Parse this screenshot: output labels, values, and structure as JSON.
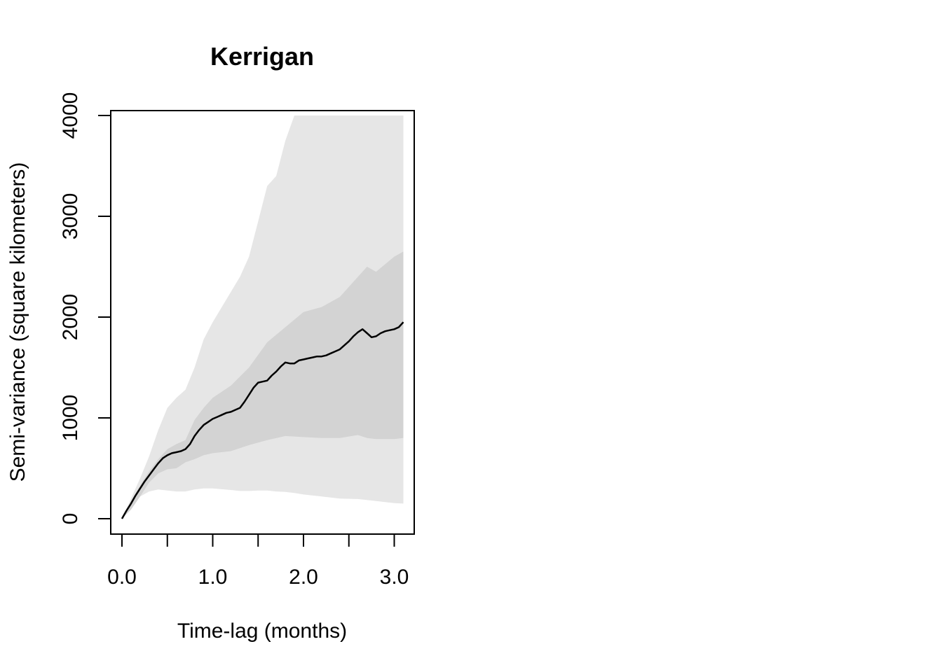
{
  "chart_data": {
    "type": "area",
    "title": "Kerrigan",
    "xlabel": "Time-lag (months)",
    "ylabel": "Semi-variance (square kilometers)",
    "xlim": [
      0.0,
      3.1
    ],
    "ylim": [
      0,
      4000
    ],
    "x_ticks": [
      0.0,
      0.5,
      1.0,
      1.5,
      2.0,
      2.5,
      3.0
    ],
    "x_tick_labels": [
      "0.0",
      "1.0",
      "2.0",
      "3.0"
    ],
    "x_tick_label_values": [
      0.0,
      1.0,
      2.0,
      3.0
    ],
    "y_ticks": [
      0,
      1000,
      2000,
      3000,
      4000
    ],
    "y_tick_labels": [
      "0",
      "1000",
      "2000",
      "3000",
      "4000"
    ],
    "grid": false,
    "legend": "none",
    "colors": {
      "outer_band": "#e6e6e6",
      "inner_band": "#d3d3d3",
      "line": "#000000"
    },
    "series": [
      {
        "role": "outer-confidence-band",
        "x": [
          0.0,
          0.1,
          0.2,
          0.3,
          0.4,
          0.5,
          0.6,
          0.7,
          0.8,
          0.9,
          1.0,
          1.2,
          1.3,
          1.4,
          1.5,
          1.6,
          1.7,
          1.8,
          1.9,
          2.0,
          2.2,
          2.4,
          2.6,
          2.8,
          3.0,
          3.1
        ],
        "upper": [
          0,
          200,
          400,
          620,
          880,
          1100,
          1200,
          1280,
          1500,
          1780,
          1950,
          2250,
          2400,
          2600,
          2950,
          3300,
          3400,
          3750,
          4000,
          4000,
          4000,
          4000,
          4000,
          4000,
          4000,
          4000
        ],
        "lower": [
          0,
          120,
          220,
          270,
          290,
          280,
          270,
          270,
          290,
          300,
          300,
          285,
          275,
          275,
          280,
          280,
          270,
          265,
          255,
          240,
          220,
          200,
          195,
          175,
          155,
          150
        ]
      },
      {
        "role": "inner-confidence-band",
        "x": [
          0.0,
          0.1,
          0.2,
          0.3,
          0.4,
          0.5,
          0.6,
          0.7,
          0.8,
          0.9,
          1.0,
          1.2,
          1.4,
          1.6,
          1.8,
          2.0,
          2.2,
          2.4,
          2.6,
          2.7,
          2.8,
          3.0,
          3.1
        ],
        "upper": [
          0,
          170,
          330,
          470,
          590,
          690,
          740,
          780,
          980,
          1100,
          1200,
          1320,
          1500,
          1750,
          1900,
          2050,
          2100,
          2200,
          2400,
          2500,
          2450,
          2600,
          2650
        ],
        "lower": [
          0,
          90,
          220,
          360,
          450,
          490,
          500,
          560,
          590,
          630,
          650,
          670,
          730,
          780,
          820,
          810,
          800,
          800,
          830,
          800,
          790,
          790,
          800
        ]
      },
      {
        "role": "semi-variance",
        "x": [
          0.0,
          0.05,
          0.1,
          0.15,
          0.2,
          0.25,
          0.3,
          0.35,
          0.4,
          0.45,
          0.5,
          0.55,
          0.6,
          0.65,
          0.7,
          0.75,
          0.8,
          0.85,
          0.9,
          0.95,
          1.0,
          1.05,
          1.1,
          1.15,
          1.2,
          1.25,
          1.3,
          1.35,
          1.4,
          1.45,
          1.5,
          1.55,
          1.6,
          1.65,
          1.7,
          1.75,
          1.8,
          1.85,
          1.9,
          1.95,
          2.0,
          2.05,
          2.1,
          2.15,
          2.2,
          2.25,
          2.3,
          2.35,
          2.4,
          2.45,
          2.5,
          2.55,
          2.6,
          2.65,
          2.7,
          2.75,
          2.8,
          2.85,
          2.9,
          2.95,
          3.0,
          3.05,
          3.1
        ],
        "y": [
          0,
          80,
          150,
          230,
          300,
          370,
          430,
          490,
          550,
          600,
          630,
          650,
          660,
          670,
          690,
          740,
          820,
          880,
          930,
          960,
          990,
          1010,
          1030,
          1050,
          1060,
          1080,
          1100,
          1160,
          1230,
          1300,
          1350,
          1360,
          1370,
          1420,
          1460,
          1510,
          1550,
          1540,
          1540,
          1570,
          1580,
          1590,
          1600,
          1610,
          1610,
          1620,
          1640,
          1660,
          1680,
          1720,
          1760,
          1810,
          1850,
          1880,
          1840,
          1800,
          1810,
          1840,
          1860,
          1870,
          1880,
          1900,
          1950
        ]
      }
    ]
  }
}
